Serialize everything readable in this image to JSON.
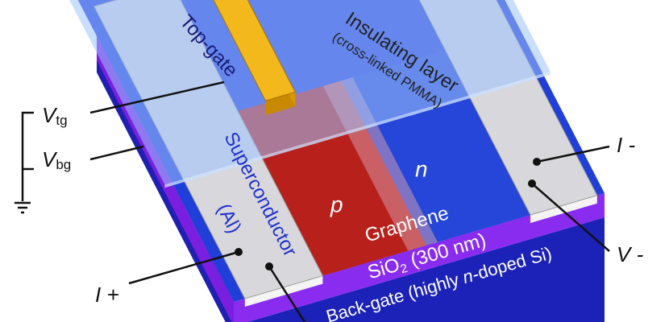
{
  "labels": {
    "top_gate": "Top-gate",
    "insulating_layer": "Insulating layer",
    "insulating_material": "(cross-linked PMMA)",
    "v_tg": {
      "symbol": "V",
      "subscript": "tg"
    },
    "v_bg": {
      "symbol": "V",
      "subscript": "bg"
    },
    "superconductor": "Superconductor",
    "superconductor_material": "(Al)",
    "p_region": "p",
    "n_region": "n",
    "graphene": "Graphene",
    "sio2": {
      "formula": "SiO",
      "subscript": "2",
      "thickness": "(300 nm)"
    },
    "back_gate": {
      "prefix": "Back-gate (highly",
      "italic": "n",
      "suffix": "-doped Si)"
    },
    "i_minus": "I -",
    "v_minus": "V -",
    "i_plus": "I +"
  }
}
